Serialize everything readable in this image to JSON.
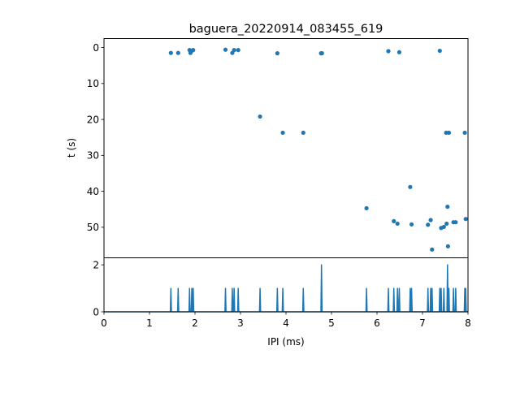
{
  "chart_data": [
    {
      "type": "scatter",
      "title": "baguera_20220914_083455_619",
      "xlabel": "",
      "ylabel": "t (s)",
      "xlim": [
        0,
        8
      ],
      "ylim": [
        58.5,
        -2.5
      ],
      "y_inverted": true,
      "yticks": [
        0,
        10,
        20,
        30,
        40,
        50
      ],
      "grid": false,
      "marker_color": "#1f77b4",
      "points": [
        {
          "x": 1.47,
          "y": 1.5
        },
        {
          "x": 1.63,
          "y": 1.5
        },
        {
          "x": 1.88,
          "y": 0.7
        },
        {
          "x": 1.9,
          "y": 1.5
        },
        {
          "x": 1.93,
          "y": 0.9
        },
        {
          "x": 1.96,
          "y": 0.7
        },
        {
          "x": 2.67,
          "y": 0.6
        },
        {
          "x": 2.82,
          "y": 1.5
        },
        {
          "x": 2.86,
          "y": 0.7
        },
        {
          "x": 2.95,
          "y": 0.7
        },
        {
          "x": 3.43,
          "y": 19.2
        },
        {
          "x": 3.81,
          "y": 1.6
        },
        {
          "x": 3.93,
          "y": 23.7
        },
        {
          "x": 4.38,
          "y": 23.7
        },
        {
          "x": 4.77,
          "y": 1.6
        },
        {
          "x": 4.79,
          "y": 1.6
        },
        {
          "x": 5.77,
          "y": 44.7
        },
        {
          "x": 6.25,
          "y": 1.0
        },
        {
          "x": 6.37,
          "y": 48.3
        },
        {
          "x": 6.45,
          "y": 49.0
        },
        {
          "x": 6.49,
          "y": 1.3
        },
        {
          "x": 6.73,
          "y": 38.8
        },
        {
          "x": 6.76,
          "y": 49.2
        },
        {
          "x": 7.12,
          "y": 49.3
        },
        {
          "x": 7.18,
          "y": 48.0
        },
        {
          "x": 7.21,
          "y": 56.2
        },
        {
          "x": 7.38,
          "y": 0.9
        },
        {
          "x": 7.41,
          "y": 50.2
        },
        {
          "x": 7.47,
          "y": 49.9
        },
        {
          "x": 7.52,
          "y": 23.7
        },
        {
          "x": 7.53,
          "y": 49.0
        },
        {
          "x": 7.55,
          "y": 44.3
        },
        {
          "x": 7.56,
          "y": 55.3
        },
        {
          "x": 7.58,
          "y": 23.7
        },
        {
          "x": 7.68,
          "y": 48.6
        },
        {
          "x": 7.73,
          "y": 48.6
        },
        {
          "x": 7.93,
          "y": 23.7
        },
        {
          "x": 7.95,
          "y": 47.7
        }
      ]
    },
    {
      "type": "line",
      "title": "",
      "xlabel": "IPI (ms)",
      "ylabel": "",
      "xlim": [
        0,
        8
      ],
      "ylim": [
        0,
        2.3
      ],
      "xticks": [
        0,
        1,
        2,
        3,
        4,
        5,
        6,
        7,
        8
      ],
      "yticks": [
        0,
        2
      ],
      "grid": false,
      "line_color": "#1f77b4",
      "description": "histogram of IPI values (counts per bin)",
      "spikes": [
        {
          "x": 1.47,
          "count": 1
        },
        {
          "x": 1.63,
          "count": 1
        },
        {
          "x": 1.88,
          "count": 1
        },
        {
          "x": 1.93,
          "count": 1
        },
        {
          "x": 1.96,
          "count": 1
        },
        {
          "x": 2.67,
          "count": 1
        },
        {
          "x": 2.82,
          "count": 1
        },
        {
          "x": 2.86,
          "count": 1
        },
        {
          "x": 2.95,
          "count": 1
        },
        {
          "x": 3.43,
          "count": 1
        },
        {
          "x": 3.81,
          "count": 1
        },
        {
          "x": 3.93,
          "count": 1
        },
        {
          "x": 4.38,
          "count": 1
        },
        {
          "x": 4.78,
          "count": 2
        },
        {
          "x": 5.77,
          "count": 1
        },
        {
          "x": 6.25,
          "count": 1
        },
        {
          "x": 6.37,
          "count": 1
        },
        {
          "x": 6.45,
          "count": 1
        },
        {
          "x": 6.49,
          "count": 1
        },
        {
          "x": 6.73,
          "count": 1
        },
        {
          "x": 6.76,
          "count": 1
        },
        {
          "x": 7.12,
          "count": 1
        },
        {
          "x": 7.18,
          "count": 1
        },
        {
          "x": 7.21,
          "count": 1
        },
        {
          "x": 7.38,
          "count": 1
        },
        {
          "x": 7.41,
          "count": 1
        },
        {
          "x": 7.47,
          "count": 1
        },
        {
          "x": 7.55,
          "count": 2
        },
        {
          "x": 7.58,
          "count": 1
        },
        {
          "x": 7.68,
          "count": 1
        },
        {
          "x": 7.73,
          "count": 1
        },
        {
          "x": 7.93,
          "count": 1
        },
        {
          "x": 7.95,
          "count": 1
        }
      ]
    }
  ]
}
